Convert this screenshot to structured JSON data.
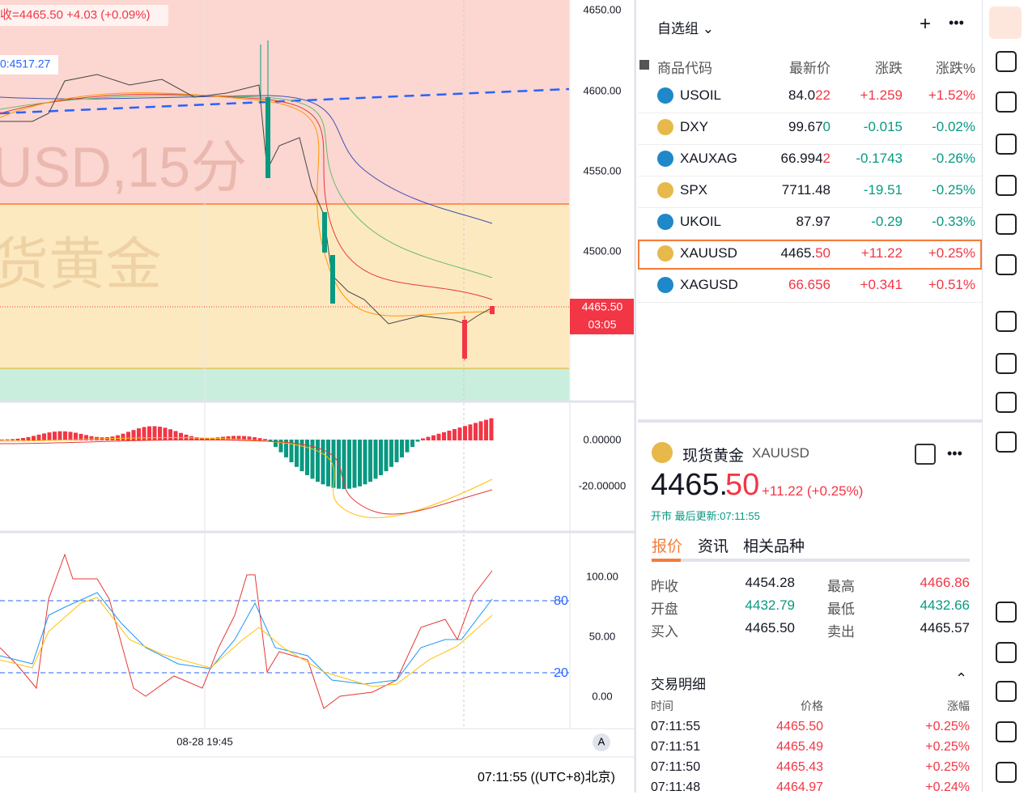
{
  "chart": {
    "legend": "收=4465.50 +4.03 (+0.09%)",
    "line_label": "0:4517.27",
    "watermark_symbol": "USD,15分",
    "watermark_name": "货黄金",
    "price_axis": [
      "4650.00",
      "4600.00",
      "4550.00",
      "4500.00"
    ],
    "last_price": "4465.50",
    "countdown": "03:05",
    "macd_axis": [
      "0.00000",
      "-20.00000"
    ],
    "rsi_axis": [
      "100.00",
      "50.00",
      "0.00"
    ],
    "rsi_levels": [
      "80",
      "20"
    ],
    "time_label": "08-28 19:45",
    "axis_mode": "A",
    "clock": "07:11:55 ((UTC+8)北京)"
  },
  "watchlist": {
    "title": "自选组",
    "headers": [
      "商品代码",
      "最新价",
      "涨跌",
      "涨跌%"
    ],
    "rows": [
      {
        "symbol": "USOIL",
        "price_main": "84.0",
        "price_tail": "22",
        "tail_color": "#f23645",
        "change": "+1.259",
        "pct": "+1.52%",
        "change_color": "#f23645"
      },
      {
        "symbol": "DXY",
        "price_main": "99.67",
        "price_tail": "0",
        "tail_color": "#089981",
        "change": "-0.015",
        "pct": "-0.02%",
        "change_color": "#089981"
      },
      {
        "symbol": "XAUXAG",
        "price_main": "66.994",
        "price_tail": "2",
        "tail_color": "#f23645",
        "change": "-0.1743",
        "pct": "-0.26%",
        "change_color": "#089981"
      },
      {
        "symbol": "SPX",
        "price_main": "7711.48",
        "price_tail": "",
        "tail_color": "#131722",
        "change": "-19.51",
        "pct": "-0.25%",
        "change_color": "#089981"
      },
      {
        "symbol": "UKOIL",
        "price_main": "87.97",
        "price_tail": "",
        "tail_color": "#131722",
        "change": "-0.29",
        "pct": "-0.33%",
        "change_color": "#089981"
      },
      {
        "symbol": "XAUUSD",
        "price_main": "4465.",
        "price_tail": "50",
        "tail_color": "#f23645",
        "change": "+11.22",
        "pct": "+0.25%",
        "change_color": "#f23645"
      },
      {
        "symbol": "XAGUSD",
        "price_main": "66.656",
        "price_tail": "",
        "tail_color": "#f23645",
        "change": "+0.341",
        "pct": "+0.51%",
        "change_color": "#f23645"
      }
    ]
  },
  "detail": {
    "name": "现货黄金",
    "symbol": "XAUUSD",
    "price_int": "4465.",
    "price_dec": "50",
    "change": "+11.22 (+0.25%)",
    "status": "开市 最后更新:07:11:55",
    "tabs": [
      "报价",
      "资讯",
      "相关品种"
    ],
    "stats": [
      [
        "昨收",
        "4454.28",
        "最高",
        "4466.86"
      ],
      [
        "开盘",
        "4432.79",
        "最低",
        "4432.66"
      ],
      [
        "买入",
        "4465.50",
        "卖出",
        "4465.57"
      ]
    ],
    "trades_title": "交易明细",
    "trades_headers": [
      "时间",
      "价格",
      "涨幅"
    ],
    "trades": [
      [
        "07:11:55",
        "4465.50",
        "+0.25%"
      ],
      [
        "07:11:51",
        "4465.49",
        "+0.25%"
      ],
      [
        "07:11:50",
        "4465.43",
        "+0.25%"
      ],
      [
        "07:11:48",
        "4464.97",
        "+0.24%"
      ]
    ]
  }
}
